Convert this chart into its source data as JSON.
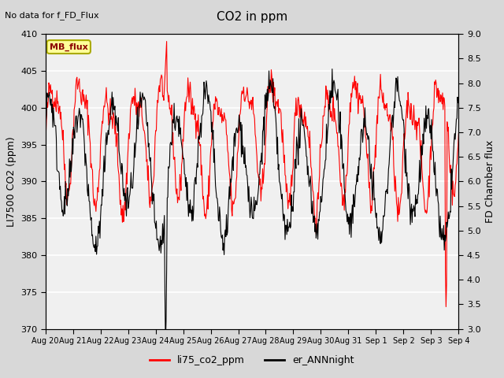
{
  "title": "CO2 in ppm",
  "top_left_text": "No data for f_FD_Flux",
  "box_label": "MB_flux",
  "ylabel_left": "LI7500 CO2 (ppm)",
  "ylabel_right": "FD Chamber flux",
  "ylim_left": [
    370,
    410
  ],
  "ylim_right": [
    3.0,
    9.0
  ],
  "yticks_left": [
    370,
    375,
    380,
    385,
    390,
    395,
    400,
    405,
    410
  ],
  "yticks_right": [
    3.0,
    3.5,
    4.0,
    4.5,
    5.0,
    5.5,
    6.0,
    6.5,
    7.0,
    7.5,
    8.0,
    8.5,
    9.0
  ],
  "xtick_labels": [
    "Aug 20",
    "Aug 21",
    "Aug 22",
    "Aug 23",
    "Aug 24",
    "Aug 25",
    "Aug 26",
    "Aug 27",
    "Aug 28",
    "Aug 29",
    "Aug 30",
    "Aug 31",
    "Sep 1",
    "Sep 2",
    "Sep 3",
    "Sep 4"
  ],
  "legend_entries": [
    "li75_co2_ppm",
    "er_ANNnight"
  ],
  "legend_colors": [
    "red",
    "black"
  ],
  "line_color_red": "#FF0000",
  "line_color_black": "#000000",
  "bg_color": "#D8D8D8",
  "plot_bg_color": "#F0F0F0",
  "grid_color": "#FFFFFF",
  "box_bg": "#FFFF99",
  "box_border": "#AAAA00",
  "seed": 42,
  "n_days": 15,
  "pts_per_day": 48
}
